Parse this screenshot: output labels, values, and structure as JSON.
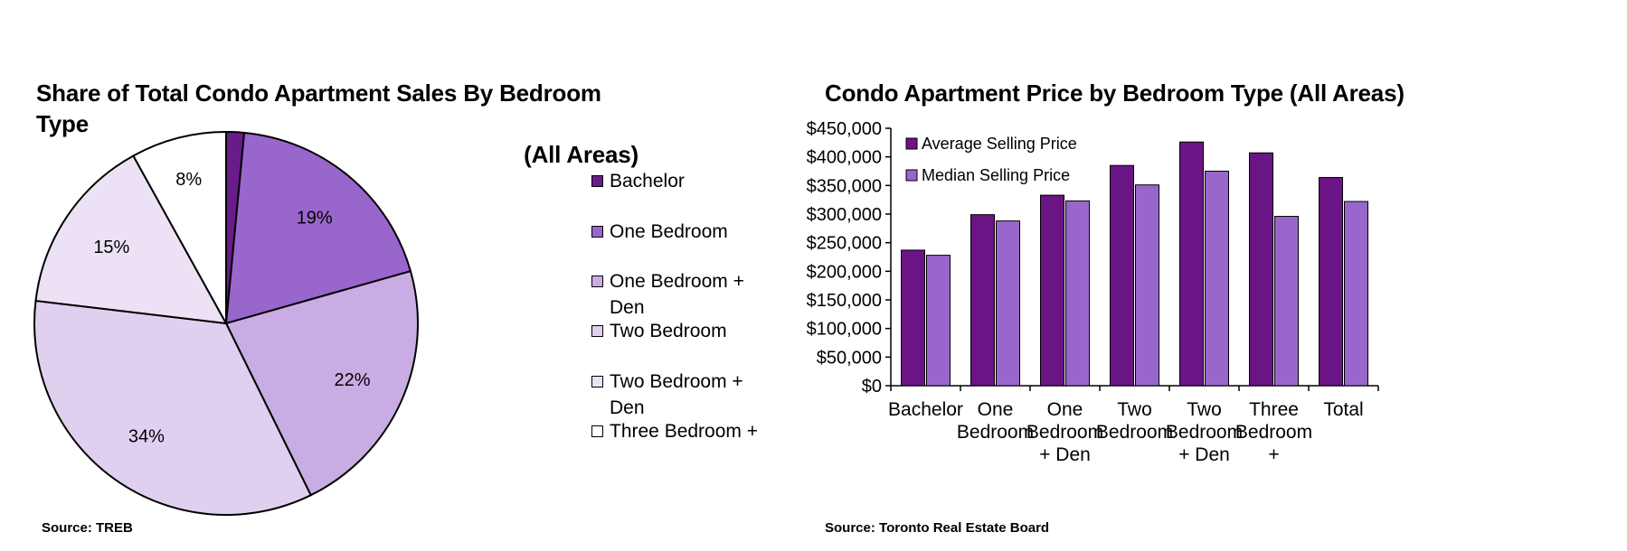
{
  "pie_panel": {
    "title_line1": "Share of Total Condo Apartment Sales By Bedroom Type",
    "title_line2": "(All Areas)",
    "source": "Source: TREB"
  },
  "bar_panel": {
    "title": "Condo Apartment Price by Bedroom Type (All Areas)",
    "source": "Source: Toronto Real Estate Board"
  },
  "chart_data": [
    {
      "type": "pie",
      "title": "Share of Total Condo Apartment Sales By Bedroom Type (All Areas)",
      "legend_position": "right",
      "slices": [
        {
          "name": "Bachelor",
          "value": 1.5,
          "label": "",
          "color": "#6a1b8a"
        },
        {
          "name": "One Bedroom",
          "value": 19,
          "label": "19%",
          "color": "#9966cc"
        },
        {
          "name": "One Bedroom + Den",
          "value": 22,
          "label": "22%",
          "color": "#c9ace3"
        },
        {
          "name": "Two Bedroom",
          "value": 34,
          "label": "34%",
          "color": "#e0d0f0"
        },
        {
          "name": "Two Bedroom + Den",
          "value": 15,
          "label": "15%",
          "color": "#ede2f5"
        },
        {
          "name": "Three Bedroom +",
          "value": 8,
          "label": "8%",
          "color": "#ffffff"
        }
      ]
    },
    {
      "type": "bar",
      "title": "Condo Apartment Price by Bedroom Type (All Areas)",
      "categories": [
        [
          "Bachelor"
        ],
        [
          "One",
          "Bedroom"
        ],
        [
          "One",
          "Bedroom",
          "+ Den"
        ],
        [
          "Two",
          "Bedroom"
        ],
        [
          "Two",
          "Bedroom",
          "+ Den"
        ],
        [
          "Three",
          "Bedroom",
          "+"
        ],
        [
          "Total"
        ]
      ],
      "series": [
        {
          "name": "Average Selling Price",
          "color": "#6a1486",
          "values": [
            237000,
            299000,
            333000,
            385000,
            426000,
            407000,
            364000
          ]
        },
        {
          "name": "Median Selling Price",
          "color": "#9966cc",
          "values": [
            228000,
            288000,
            323000,
            351000,
            375000,
            296000,
            322000
          ]
        }
      ],
      "ylim": [
        0,
        450000
      ],
      "yticks": [
        "$0",
        "$50,000",
        "$100,000",
        "$150,000",
        "$200,000",
        "$250,000",
        "$300,000",
        "$350,000",
        "$400,000",
        "$450,000"
      ],
      "ytick_values": [
        0,
        50000,
        100000,
        150000,
        200000,
        250000,
        300000,
        350000,
        400000,
        450000
      ],
      "grid": false,
      "legend_position": "top-left"
    }
  ]
}
